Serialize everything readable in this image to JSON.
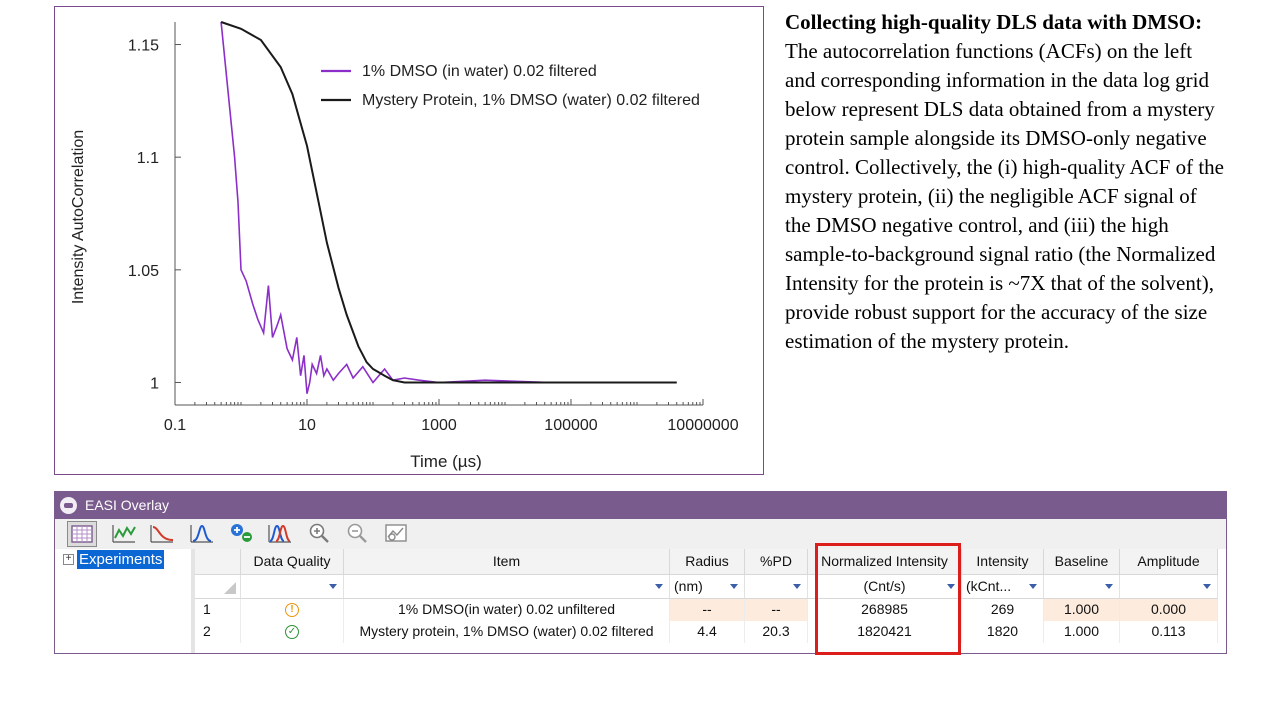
{
  "chart_data": {
    "type": "line",
    "xlabel": "Time (µs)",
    "ylabel": "Intensity AutoCorrelation",
    "x_scale": "log",
    "xlim": [
      0.1,
      10000000
    ],
    "ylim": [
      0.99,
      1.16
    ],
    "x_ticks": [
      "0.1",
      "10",
      "1000",
      "100000",
      "10000000"
    ],
    "y_ticks": [
      "1",
      "1.05",
      "1.1",
      "1.15"
    ],
    "series": [
      {
        "name": "1% DMSO (in water) 0.02 filtered",
        "color": "#8c2fc9",
        "x": [
          0.5,
          0.8,
          0.9,
          1.0,
          1.2,
          1.5,
          1.8,
          2.2,
          2.6,
          3.0,
          3.5,
          4.0,
          5.0,
          6.0,
          7.0,
          8.0,
          9.0,
          10,
          11,
          12,
          14,
          16,
          18,
          20,
          25,
          30,
          40,
          50,
          70,
          100,
          150,
          200,
          300,
          500,
          1000,
          5000,
          50000,
          500000,
          4000000
        ],
        "y": [
          1.16,
          1.1,
          1.08,
          1.05,
          1.045,
          1.035,
          1.028,
          1.022,
          1.043,
          1.02,
          1.025,
          1.03,
          1.015,
          1.01,
          1.02,
          1.003,
          1.012,
          0.995,
          1.0,
          1.008,
          1.004,
          1.012,
          1.003,
          1.006,
          1.001,
          1.004,
          1.008,
          1.002,
          1.007,
          1.0,
          1.006,
          1.001,
          1.002,
          1.001,
          1.0,
          1.001,
          1.0,
          1.0,
          1.0
        ]
      },
      {
        "name": "Mystery Protein, 1% DMSO (water) 0.02 filtered",
        "color": "#1a1a1a",
        "x": [
          0.5,
          1,
          2,
          4,
          6,
          10,
          15,
          20,
          30,
          40,
          60,
          80,
          100,
          150,
          200,
          300,
          500,
          1000,
          10000,
          100000,
          1000000,
          4000000
        ],
        "y": [
          1.16,
          1.157,
          1.152,
          1.14,
          1.128,
          1.105,
          1.08,
          1.062,
          1.042,
          1.03,
          1.016,
          1.009,
          1.006,
          1.003,
          1.001,
          1.0,
          1.0,
          1.0,
          1.0,
          1.0,
          1.0,
          1.0
        ]
      }
    ]
  },
  "caption": {
    "bold": "Collecting high-quality DLS data with DMSO:",
    "text": " The autocorrelation functions (ACFs) on the left and corresponding information in the data log grid below represent DLS data obtained from a mystery protein sample alongside its DMSO-only negative control. Collectively, the (i) high-quality ACF of the mystery protein, (ii) the negligible ACF signal of the DMSO negative control, and (iii) the high sample-to-background signal ratio (the Normalized Intensity for the protein is ~7X that of the solvent), provide robust support for the accuracy of the size estimation of the mystery protein."
  },
  "window": {
    "title": "EASI Overlay",
    "toolbar": [
      "grid-view-icon",
      "line-plot-icon",
      "decay-plot-icon",
      "distribution-plot-icon",
      "add-remove-icon",
      "overlay-dist-icon",
      "zoom-in-icon",
      "zoom-out-icon",
      "zoom-fit-icon"
    ]
  },
  "tree": {
    "label": "Experiments"
  },
  "grid": {
    "headers": [
      "Data Quality",
      "Item",
      "Radius",
      "%PD",
      "Normalized Intensity",
      "Intensity",
      "Baseline",
      "Amplitude"
    ],
    "units": [
      "",
      "",
      "(nm)",
      "",
      "(Cnt/s)",
      "(kCnt...",
      "",
      ""
    ],
    "rows": [
      {
        "num": "1",
        "quality": "!",
        "item": "1% DMSO(in water) 0.02 unfiltered",
        "radius": "--",
        "pd": "--",
        "norm_intensity": "268985",
        "intensity": "269",
        "baseline": "1.000",
        "amplitude": "0.000"
      },
      {
        "num": "2",
        "quality": "✓",
        "item": "Mystery protein, 1% DMSO (water) 0.02 filtered",
        "radius": "4.4",
        "pd": "20.3",
        "norm_intensity": "1820421",
        "intensity": "1820",
        "baseline": "1.000",
        "amplitude": "0.113"
      }
    ]
  },
  "colors": {
    "window_title_bar": "#7a5b8d",
    "highlight": "#dd1c1c",
    "warning": "#e8960e",
    "ok": "#2f8f3a",
    "row1_highlight": "#fdebdd"
  }
}
